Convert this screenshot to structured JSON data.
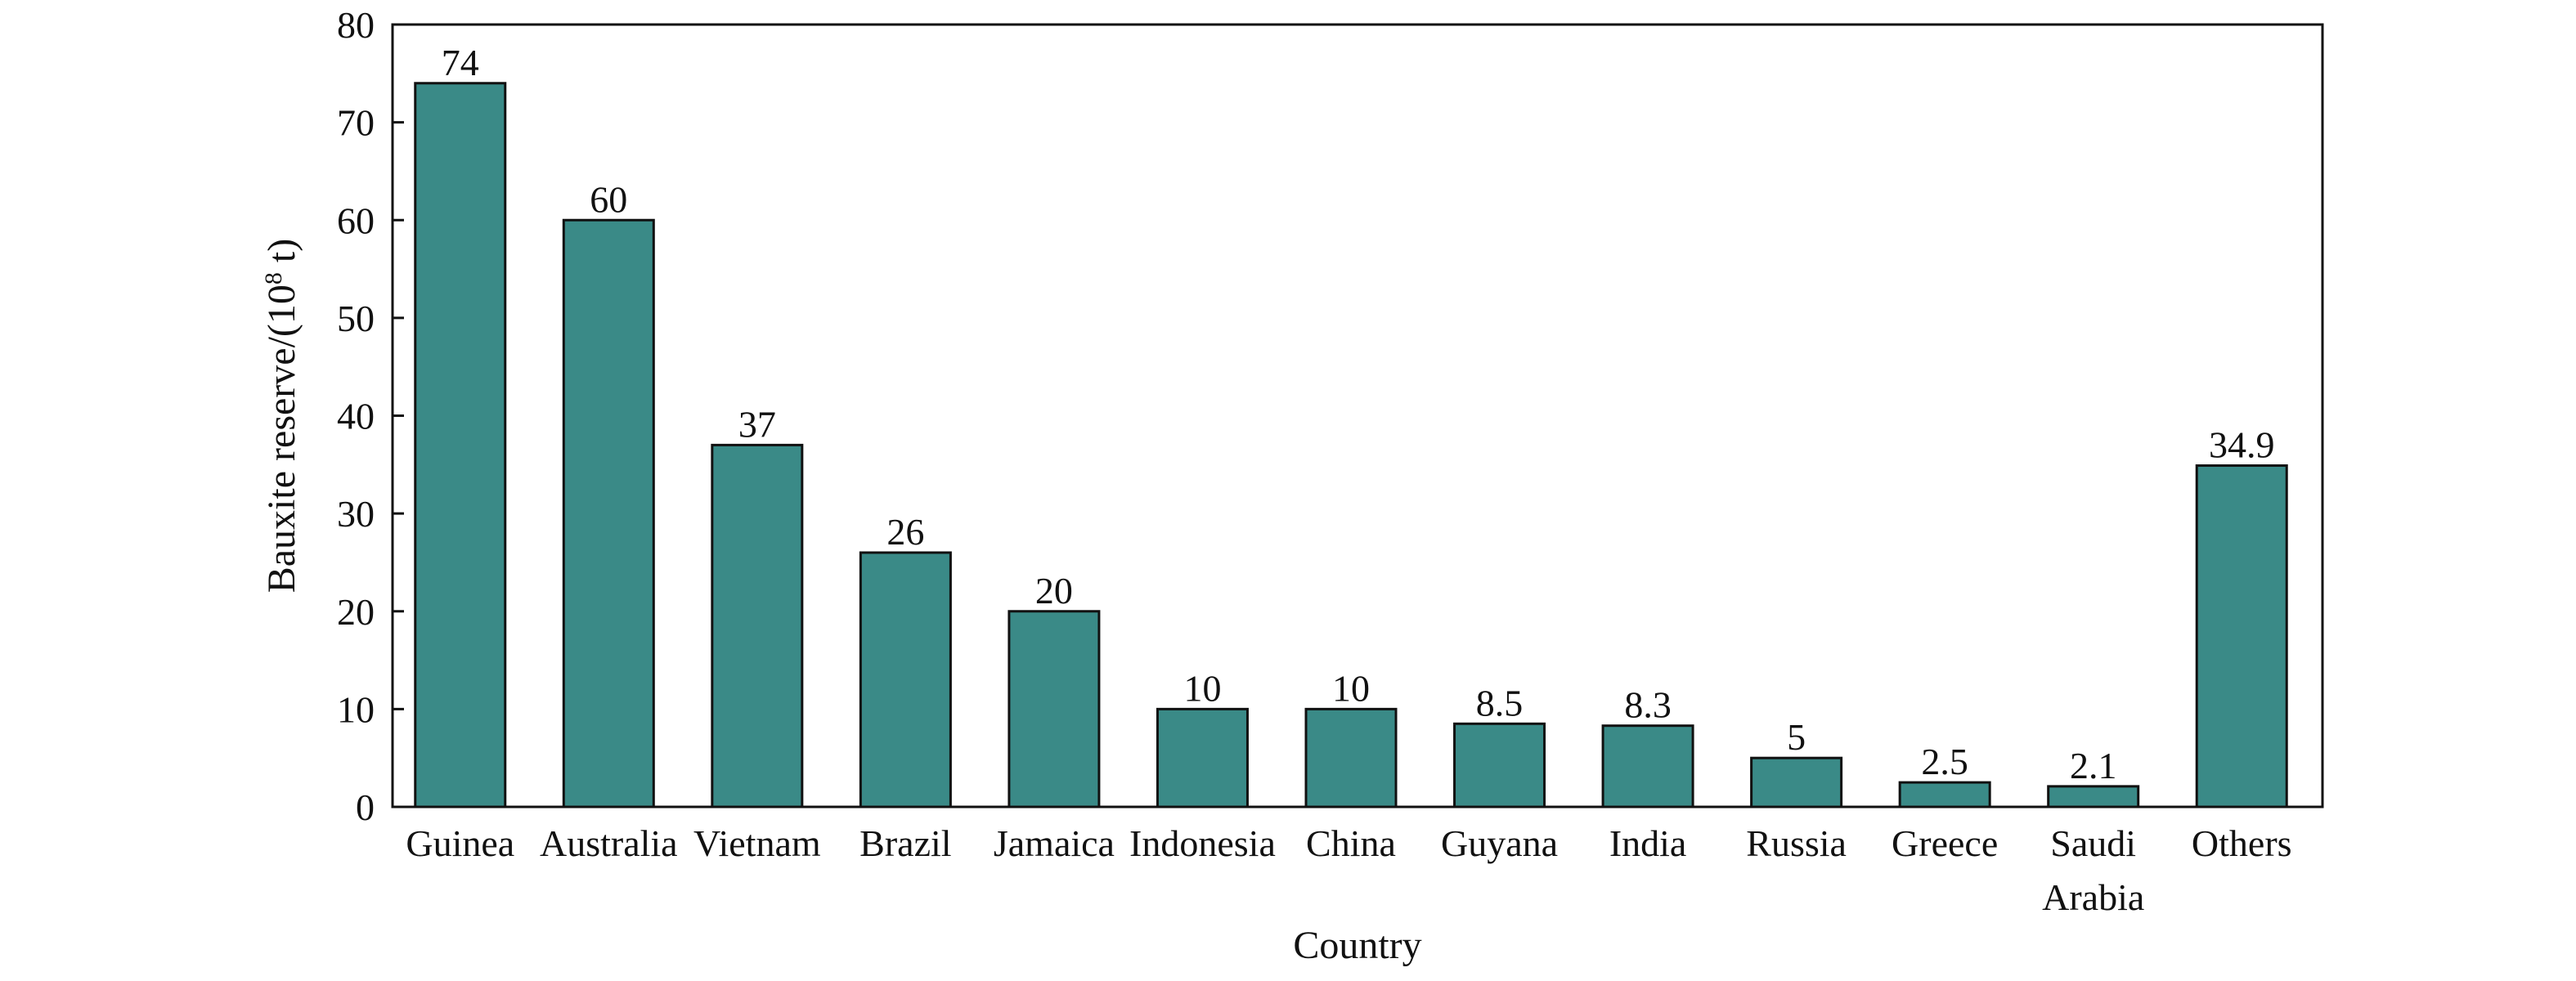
{
  "chart_data": {
    "type": "bar",
    "categories": [
      "Guinea",
      "Australia",
      "Vietnam",
      "Brazil",
      "Jamaica",
      "Indonesia",
      "China",
      "Guyana",
      "India",
      "Russia",
      "Greece",
      "Saudi Arabia",
      "Others"
    ],
    "category_lines": [
      [
        "Guinea"
      ],
      [
        "Australia"
      ],
      [
        "Vietnam"
      ],
      [
        "Brazil"
      ],
      [
        "Jamaica"
      ],
      [
        "Indonesia"
      ],
      [
        "China"
      ],
      [
        "Guyana"
      ],
      [
        "India"
      ],
      [
        "Russia"
      ],
      [
        "Greece"
      ],
      [
        "Saudi",
        "Arabia"
      ],
      [
        "Others"
      ]
    ],
    "values": [
      74,
      60,
      37,
      26,
      20,
      10,
      10,
      8.5,
      8.3,
      5,
      2.5,
      2.1,
      34.9
    ],
    "value_labels": [
      "74",
      "60",
      "37",
      "26",
      "20",
      "10",
      "10",
      "8.5",
      "8.3",
      "5",
      "2.5",
      "2.1",
      "34.9"
    ],
    "xlabel": "Country",
    "ylabel": "Bauxite reserve/(10",
    "ylabel_sup": "8",
    "ylabel_end": " t)",
    "ylim": [
      0,
      80
    ],
    "yticks": [
      0,
      10,
      20,
      30,
      40,
      50,
      60,
      70,
      80
    ],
    "grid": false,
    "bar_color": "#3a8a87",
    "bar_edge_color": "#111111"
  }
}
